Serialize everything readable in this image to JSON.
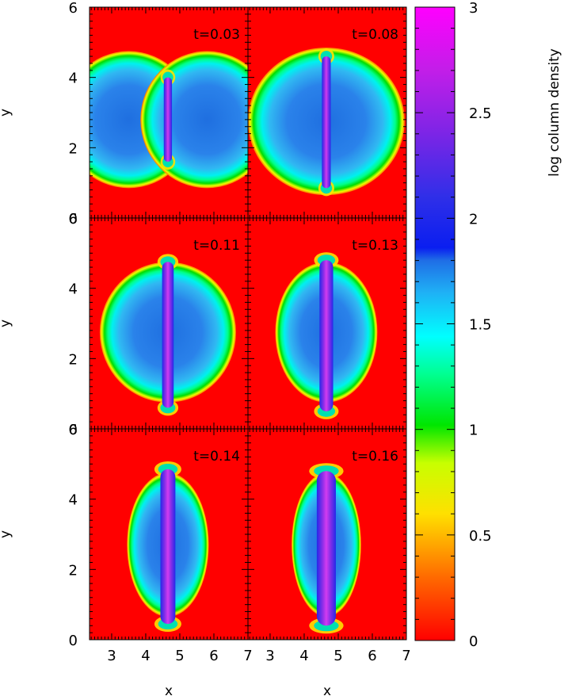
{
  "chart_data": {
    "type": "heatmap",
    "layout": {
      "rows": 3,
      "cols": 2
    },
    "xlabel": "x",
    "ylabel": "y",
    "xlim": [
      2.35,
      7
    ],
    "ylim": [
      0,
      6
    ],
    "x_ticks": [
      "3",
      "4",
      "5",
      "6",
      "7"
    ],
    "y_ticks": [
      "0",
      "2",
      "4",
      "6"
    ],
    "panels": [
      {
        "label": "t=0.03",
        "shape": "two-blobs",
        "cx": 4.65,
        "cy": 2.8,
        "rx": 2.3,
        "ry": 1.95,
        "sheet_halfwidth": 0.12,
        "sheet_y": [
          1.6,
          4.0
        ]
      },
      {
        "label": "t=0.08",
        "shape": "ellipse",
        "cx": 4.65,
        "cy": 2.75,
        "rx": 2.3,
        "ry": 2.1,
        "sheet_halfwidth": 0.13,
        "sheet_y": [
          0.85,
          4.6
        ]
      },
      {
        "label": "t=0.11",
        "shape": "ellipse",
        "cx": 4.65,
        "cy": 2.75,
        "rx": 2.0,
        "ry": 2.0,
        "sheet_halfwidth": 0.17,
        "sheet_y": [
          0.6,
          4.75
        ]
      },
      {
        "label": "t=0.13",
        "shape": "ellipse",
        "cx": 4.65,
        "cy": 2.75,
        "rx": 1.5,
        "ry": 2.0,
        "sheet_halfwidth": 0.2,
        "sheet_y": [
          0.5,
          4.8
        ]
      },
      {
        "label": "t=0.14",
        "shape": "ellipse",
        "cx": 4.65,
        "cy": 2.7,
        "rx": 1.2,
        "ry": 2.05,
        "sheet_halfwidth": 0.22,
        "sheet_y": [
          0.45,
          4.85
        ]
      },
      {
        "label": "t=0.16",
        "shape": "lens",
        "cx": 4.65,
        "cy": 2.7,
        "rx": 1.0,
        "ry": 2.05,
        "sheet_halfwidth": 0.28,
        "sheet_y": [
          0.4,
          4.8
        ]
      }
    ],
    "colorbar": {
      "label": "log column density",
      "range": [
        0,
        3
      ],
      "ticks": [
        "0",
        "0.5",
        "1",
        "1.5",
        "2",
        "2.5",
        "3"
      ]
    }
  }
}
